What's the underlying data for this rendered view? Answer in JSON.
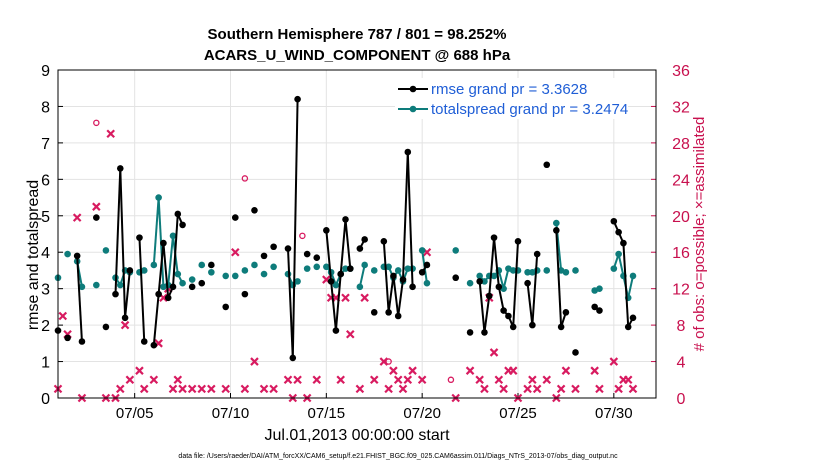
{
  "chart_data": {
    "type": "scatter",
    "title": [
      "Southern Hemisphere 787 / 801 = 98.252%",
      "ACARS_U_WIND_COMPONENT @ 688 hPa"
    ],
    "xlabel": "Jul.01,2013 00:00:00 start",
    "ylabel_left": "rmse and totalspread",
    "ylabel_right": "# of obs: o=possible; ×=assimilated",
    "footnote": "data file: /Users/raeder/DAI/ATM_forcXX/CAM6_setup/f.e21.FHIST_BGC.f09_025.CAM6assim.011/Diags_NTrS_2013-07/obs_diag_output.nc",
    "x_unit": "day of July 2013 (fractional)",
    "xlim": [
      1,
      32.2
    ],
    "ylim_left": [
      0,
      9
    ],
    "ylim_right": [
      0,
      36
    ],
    "yticks_left": [
      "0",
      "1",
      "2",
      "3",
      "4",
      "5",
      "6",
      "7",
      "8",
      "9"
    ],
    "yticks_right": [
      "0",
      "4",
      "8",
      "12",
      "16",
      "20",
      "24",
      "28",
      "32",
      "36"
    ],
    "xticks": [
      {
        "value": 5,
        "label": "07/05"
      },
      {
        "value": 10,
        "label": "07/10"
      },
      {
        "value": 15,
        "label": "07/15"
      },
      {
        "value": 20,
        "label": "07/20"
      },
      {
        "value": 25,
        "label": "07/25"
      },
      {
        "value": 30,
        "label": "07/30"
      }
    ],
    "legend": {
      "location": "top-right",
      "entries": [
        {
          "label": "rmse grand pr = 3.3628",
          "color": "#000000"
        },
        {
          "label": "totalspread grand pr = 3.2474",
          "color": "#0e7c7b"
        }
      ]
    },
    "colors": {
      "rmse": "#000000",
      "spread": "#0e7c7b",
      "obs": "#d81b60",
      "right_axis": "#c8104e"
    },
    "series": [
      {
        "name": "rmse",
        "axis": "left",
        "x": [
          1.0,
          1.5,
          2.0,
          2.25,
          3.0,
          3.5,
          4.0,
          4.25,
          4.5,
          4.75,
          5.25,
          5.5,
          6.0,
          6.25,
          6.5,
          6.75,
          7.0,
          7.25,
          7.5,
          8.0,
          8.5,
          9.0,
          9.75,
          10.25,
          10.75,
          11.25,
          11.75,
          12.25,
          13.0,
          13.25,
          13.5,
          14.0,
          14.5,
          15.0,
          15.25,
          15.5,
          15.75,
          16.0,
          16.25,
          16.75,
          17.0,
          17.5,
          18.0,
          18.25,
          18.5,
          18.75,
          19.0,
          19.25,
          19.5,
          20.0,
          20.25,
          21.75,
          22.5,
          23.0,
          23.25,
          23.5,
          23.75,
          24.0,
          24.25,
          24.5,
          24.75,
          25.0,
          25.5,
          25.75,
          26.0,
          26.5,
          27.0,
          27.25,
          27.5,
          28.0,
          29.0,
          29.25,
          30.0,
          30.25,
          30.5,
          30.75,
          31.0
        ],
        "values": [
          1.85,
          1.65,
          3.9,
          1.55,
          4.95,
          1.95,
          2.85,
          6.3,
          2.2,
          3.5,
          4.4,
          1.55,
          1.45,
          2.85,
          4.25,
          2.75,
          3.05,
          5.05,
          4.75,
          3.05,
          3.15,
          3.65,
          2.5,
          4.95,
          2.85,
          5.15,
          3.9,
          4.15,
          4.1,
          1.1,
          8.2,
          3.95,
          3.85,
          4.6,
          3.2,
          1.85,
          3.4,
          4.9,
          3.55,
          4.1,
          4.35,
          2.35,
          4.3,
          2.35,
          3.35,
          2.25,
          3.25,
          6.75,
          3.05,
          3.45,
          3.65,
          3.3,
          1.8,
          3.2,
          1.8,
          2.8,
          4.4,
          3.05,
          2.4,
          2.25,
          1.95,
          4.3,
          3.15,
          2.0,
          3.95,
          6.4,
          4.6,
          1.95,
          2.35,
          1.25,
          2.5,
          2.4,
          4.85,
          4.55,
          4.25,
          1.95,
          2.2
        ]
      },
      {
        "name": "totalspread",
        "axis": "left",
        "x": [
          1.0,
          1.5,
          2.0,
          2.25,
          3.0,
          3.5,
          4.0,
          4.25,
          4.5,
          4.75,
          5.25,
          5.5,
          6.0,
          6.25,
          6.5,
          6.75,
          7.0,
          7.25,
          7.5,
          8.0,
          8.5,
          9.0,
          9.75,
          10.25,
          10.75,
          11.25,
          11.75,
          12.25,
          13.0,
          13.25,
          13.5,
          14.0,
          14.5,
          15.0,
          15.25,
          15.5,
          15.75,
          16.0,
          16.25,
          16.75,
          17.0,
          17.5,
          18.0,
          18.25,
          18.5,
          18.75,
          19.0,
          19.25,
          19.5,
          20.0,
          20.25,
          21.75,
          22.5,
          23.0,
          23.25,
          23.5,
          23.75,
          24.0,
          24.25,
          24.5,
          24.75,
          25.0,
          25.5,
          25.75,
          26.0,
          26.5,
          27.0,
          27.25,
          27.5,
          28.0,
          29.0,
          29.25,
          30.0,
          30.25,
          30.5,
          30.75,
          31.0
        ],
        "values": [
          3.3,
          3.95,
          3.75,
          3.05,
          3.1,
          4.05,
          3.3,
          3.1,
          3.5,
          3.45,
          3.45,
          3.5,
          3.65,
          5.5,
          3.05,
          3.1,
          4.45,
          3.4,
          3.15,
          3.25,
          3.65,
          3.45,
          3.35,
          3.35,
          3.5,
          3.65,
          3.4,
          3.6,
          3.4,
          3.1,
          3.2,
          3.55,
          3.6,
          3.6,
          3.45,
          3.1,
          3.4,
          3.55,
          3.55,
          3.05,
          3.65,
          3.5,
          3.6,
          3.6,
          3.3,
          3.5,
          3.2,
          3.55,
          3.55,
          4.05,
          3.15,
          4.05,
          3.15,
          3.35,
          3.2,
          3.35,
          3.35,
          3.5,
          3.0,
          3.55,
          3.5,
          3.5,
          3.45,
          3.45,
          3.5,
          3.5,
          4.8,
          3.5,
          3.45,
          3.5,
          2.95,
          3.0,
          3.55,
          3.95,
          3.35,
          2.75,
          3.35
        ]
      },
      {
        "name": "obs_possible",
        "axis": "right",
        "marker": "o",
        "x": [
          3.0,
          10.75,
          13.75,
          18.25,
          21.5
        ],
        "values": [
          30.2,
          24.1,
          17.8,
          4.0,
          2.0
        ]
      },
      {
        "name": "obs_assimilated",
        "axis": "right",
        "marker": "x",
        "x": [
          1.0,
          1.25,
          1.5,
          2.0,
          2.25,
          3.0,
          3.5,
          3.75,
          4.0,
          4.25,
          4.5,
          4.75,
          5.25,
          5.5,
          6.0,
          6.25,
          6.5,
          6.75,
          7.0,
          7.25,
          7.5,
          8.0,
          8.5,
          9.0,
          9.75,
          10.25,
          10.75,
          11.25,
          11.75,
          12.25,
          13.0,
          13.25,
          13.5,
          14.0,
          14.5,
          15.0,
          15.25,
          15.5,
          15.75,
          16.0,
          16.25,
          16.75,
          17.0,
          17.5,
          18.0,
          18.25,
          18.5,
          18.75,
          19.0,
          19.25,
          19.5,
          20.0,
          20.25,
          21.75,
          22.5,
          23.0,
          23.25,
          23.5,
          23.75,
          24.0,
          24.25,
          24.5,
          24.75,
          25.0,
          25.5,
          25.75,
          26.0,
          26.5,
          27.0,
          27.25,
          27.5,
          28.0,
          29.0,
          29.25,
          30.0,
          30.25,
          30.5,
          30.75,
          31.0
        ],
        "values": [
          1,
          9,
          7,
          19.8,
          0,
          21,
          0,
          29,
          0,
          1,
          8,
          2,
          3,
          1,
          2,
          6,
          11,
          12,
          1,
          2,
          1,
          1,
          1,
          1,
          1,
          16,
          1,
          4,
          1,
          1,
          2,
          0,
          2,
          0,
          2,
          13,
          11,
          11,
          2,
          11,
          7,
          1,
          11,
          2,
          4,
          1,
          3,
          2,
          1,
          2,
          3,
          2,
          16,
          0,
          3,
          2,
          1,
          11,
          5,
          2,
          1,
          3,
          3,
          0,
          1,
          2,
          1,
          2,
          0,
          1,
          3,
          1,
          3,
          1,
          4,
          1,
          2,
          2,
          1
        ]
      }
    ]
  }
}
